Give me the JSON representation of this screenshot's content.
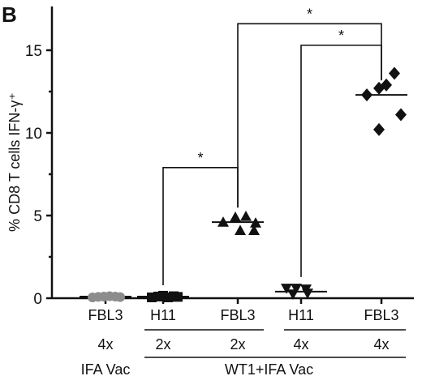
{
  "panel_label": "B",
  "chart_data": {
    "type": "scatter",
    "ylabel": "% CD8 T cells IFN-γ⁺",
    "ylim": [
      0,
      17
    ],
    "yticks": [
      0,
      5,
      10,
      15
    ],
    "groups": [
      {
        "label": "FBL3",
        "count": "4x",
        "marker": "circle",
        "color": "#8c8c8c",
        "mean": 0.1,
        "points": [
          0.05,
          0.08,
          0.1,
          0.12,
          0.1,
          0.07
        ]
      },
      {
        "label": "H11",
        "count": "2x",
        "marker": "square",
        "color": "#111111",
        "mean": 0.1,
        "points": [
          0.05,
          0.1,
          0.15,
          0.05,
          0.12,
          0.08
        ]
      },
      {
        "label": "FBL3",
        "count": "2x",
        "marker": "triangle-up",
        "color": "#111111",
        "mean": 4.6,
        "points": [
          4.6,
          4.9,
          4.95,
          4.55,
          4.1,
          4.1
        ]
      },
      {
        "label": "H11",
        "count": "4x",
        "marker": "triangle-down",
        "color": "#111111",
        "mean": 0.4,
        "points": [
          0.6,
          0.6,
          0.55,
          0.25,
          0.3
        ]
      },
      {
        "label": "FBL3",
        "count": "4x",
        "marker": "diamond",
        "color": "#111111",
        "mean": 12.3,
        "points": [
          12.7,
          13.6,
          12.9,
          12.3,
          10.2,
          11.1
        ]
      }
    ],
    "treatments": [
      {
        "label": "IFA Vac",
        "groups": [
          0
        ]
      },
      {
        "label": "WT1+IFA Vac",
        "groups": [
          1,
          2,
          3,
          4
        ]
      }
    ],
    "significance": [
      {
        "from": 1,
        "to": 2,
        "label": "*"
      },
      {
        "from": 2,
        "to": 4,
        "label": "*"
      },
      {
        "from": 3,
        "to": 4,
        "label": "*"
      }
    ]
  }
}
